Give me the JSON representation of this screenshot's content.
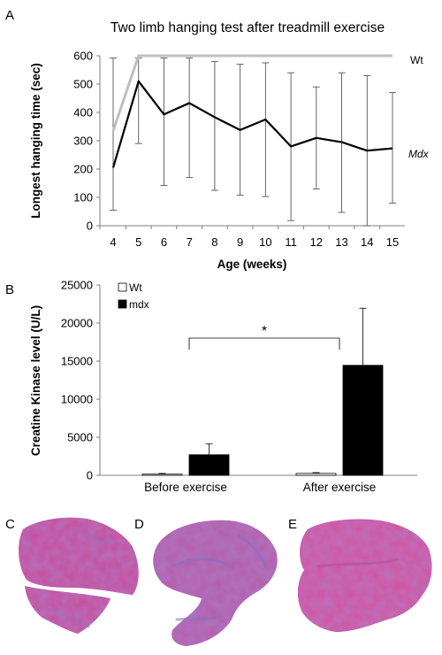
{
  "panels": {
    "A": "A",
    "B": "B",
    "C": "C",
    "D": "D",
    "E": "E"
  },
  "chart_data": [
    {
      "type": "line",
      "title": "Two limb hanging test after treadmill exercise",
      "xlabel": "Age (weeks)",
      "ylabel": "Longest hanging time (sec)",
      "x": [
        4,
        5,
        6,
        7,
        8,
        9,
        10,
        11,
        12,
        13,
        14,
        15
      ],
      "xlim": [
        4,
        15
      ],
      "ylim": [
        0,
        600
      ],
      "yticks": [
        0,
        100,
        200,
        300,
        400,
        500,
        600
      ],
      "grid": false,
      "legend": "series labels at right end of lines",
      "series": [
        {
          "name": "Wt",
          "label_style": "normal",
          "color": "#bfbfbf",
          "values": [
            335,
            600,
            600,
            600,
            600,
            600,
            600,
            600,
            600,
            600,
            600,
            600
          ],
          "error_low": [
            null,
            null,
            null,
            null,
            null,
            null,
            null,
            null,
            null,
            null,
            null,
            null
          ],
          "error_high": [
            null,
            null,
            null,
            null,
            null,
            null,
            null,
            null,
            null,
            null,
            null,
            null
          ]
        },
        {
          "name": "Mdx",
          "label_style": "italic",
          "color": "#000000",
          "values": [
            205,
            510,
            393,
            433,
            383,
            338,
            375,
            280,
            310,
            295,
            265,
            273
          ],
          "error_low": [
            55,
            290,
            142,
            170,
            125,
            108,
            103,
            18,
            130,
            47,
            0,
            80
          ],
          "error_high": [
            592,
            592,
            592,
            592,
            580,
            570,
            575,
            540,
            490,
            540,
            530,
            470
          ]
        }
      ]
    },
    {
      "type": "bar",
      "xlabel": "",
      "ylabel": "Creatine Kinase level (U/L)",
      "categories": [
        "Before exercise",
        "After exercise"
      ],
      "ylim": [
        0,
        25000
      ],
      "yticks": [
        0,
        5000,
        10000,
        15000,
        20000,
        25000
      ],
      "grid": false,
      "legend": "top-left",
      "series": [
        {
          "name": "Wt",
          "color": "#ffffff",
          "values": [
            150,
            250
          ],
          "error_high": [
            250,
            350
          ]
        },
        {
          "name": "mdx",
          "color": "#000000",
          "values": [
            2700,
            14450
          ],
          "error_high": [
            4150,
            21950
          ]
        }
      ],
      "annotations": [
        {
          "text": "*",
          "type": "significance-bracket"
        }
      ]
    }
  ],
  "micrographs": [
    {
      "id": "C",
      "stain_color": "#c9489a",
      "accent_color": "#8a78c0"
    },
    {
      "id": "D",
      "stain_color": "#b85aa8",
      "accent_color": "#7d72c2"
    },
    {
      "id": "E",
      "stain_color": "#d4509e",
      "accent_color": "#b24c9a"
    }
  ]
}
